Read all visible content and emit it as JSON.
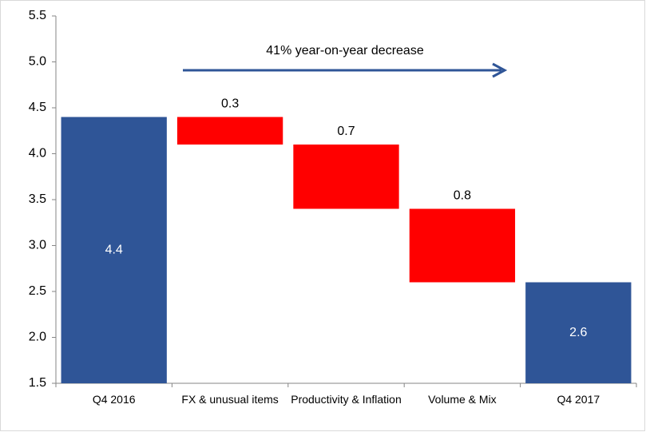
{
  "chart_data": {
    "type": "waterfall",
    "categories": [
      "Q4 2016",
      "FX & unusual items",
      "Productivity & Inflation",
      "Volume & Mix",
      "Q4 2017"
    ],
    "values": [
      4.4,
      -0.3,
      -0.7,
      -0.8,
      2.6
    ],
    "value_labels": [
      "4.4",
      "0.3",
      "0.7",
      "0.8",
      "2.6"
    ],
    "measure": [
      "absolute",
      "relative",
      "relative",
      "relative",
      "absolute"
    ],
    "colors": [
      "#2f5597",
      "#ff0000",
      "#ff0000",
      "#ff0000",
      "#2f5597"
    ],
    "ylim": [
      1.5,
      5.5
    ],
    "yticks": [
      1.5,
      {
        "value": 2,
        "label": "2.0"
      },
      2.5,
      {
        "value": 3,
        "label": "3.0"
      },
      3.5,
      {
        "value": 4,
        "label": "4.0"
      },
      4.5,
      {
        "value": 5,
        "label": "5.0"
      },
      5.5
    ],
    "grid": false,
    "annotation": "41% year-on-year decrease"
  }
}
